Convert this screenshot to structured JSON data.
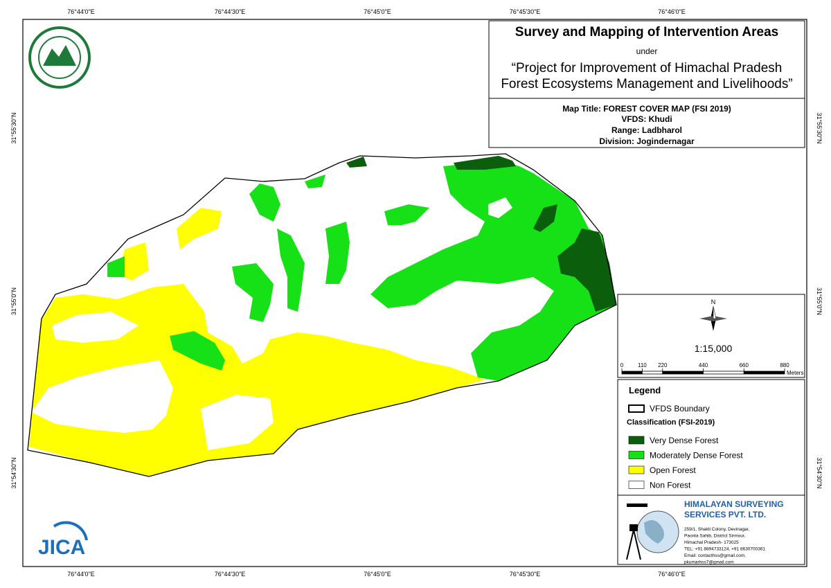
{
  "coordinates": {
    "top": [
      "76°44'0\"E",
      "76°44'30\"E",
      "76°45'0\"E",
      "76°45'30\"E",
      "76°46'0\"E"
    ],
    "bottom": [
      "76°44'0\"E",
      "76°44'30\"E",
      "76°45'0\"E",
      "76°45'30\"E",
      "76°46'0\"E"
    ],
    "left": [
      "31°55'30\"N",
      "31°55'0\"N",
      "31°54'30\"N"
    ],
    "right": [
      "31°55'30\"N",
      "31°55'0\"N",
      "31°54'30\"N"
    ]
  },
  "title_block": {
    "title": "Survey and Mapping of Intervention Areas",
    "under": "under",
    "project_line1": "“Project for Improvement of Himachal Pradesh",
    "project_line2": "Forest Ecosystems Management and Livelihoods”"
  },
  "map_info": {
    "map_title": "Map Title: FOREST COVER MAP (FSI 2019)",
    "vfds": "VFDS: Khudi",
    "range": "Range: Ladbharol",
    "division": "Division: Jogindernagar"
  },
  "scale": {
    "north": "N",
    "ratio": "1:15,000",
    "ticks": [
      0,
      110,
      220,
      440,
      660,
      880
    ],
    "unit": "Meters"
  },
  "legend": {
    "title": "Legend",
    "boundary": "VFDS Boundary",
    "classification_title": "Classification (FSI-2019)",
    "items": [
      {
        "label": "Very Dense Forest",
        "color": "#0b5e0b"
      },
      {
        "label": "Moderately Dense Forest",
        "color": "#16e016"
      },
      {
        "label": "Open Forest",
        "color": "#ffff00"
      },
      {
        "label": "Non Forest",
        "color": "#ffffff"
      }
    ]
  },
  "company": {
    "name_line1": "HIMALAYAN SURVEYING",
    "name_line2": "SERVICES PVT. LTD.",
    "address": [
      "259/1, Shakti Colony, Devinagar,",
      "Paonta Sahib, District Sirmour,",
      "Himachal Pradesh- 173025",
      "TEL: +91 8894733124, +91 8630700361",
      "Email: contacthss@gmail.com,",
      "pkumarhss7@gmail.com"
    ]
  },
  "logo": {
    "jica": "JICA"
  }
}
